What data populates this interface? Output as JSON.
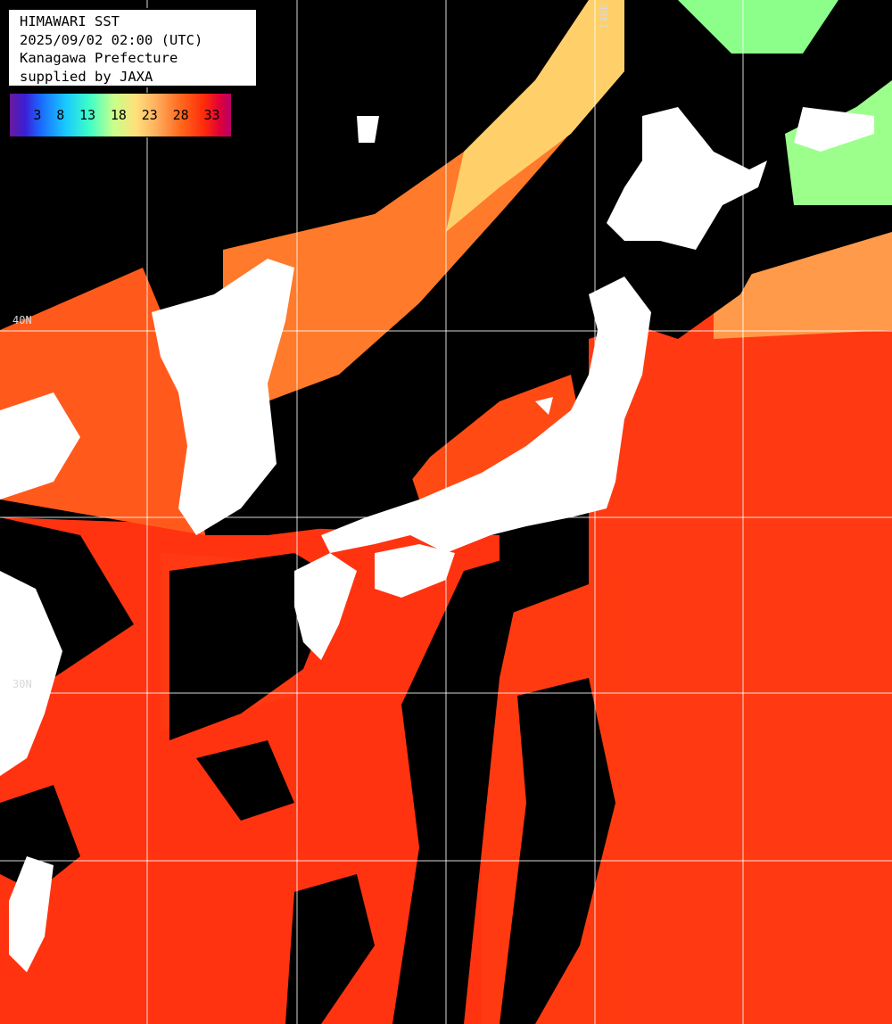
{
  "title_block": {
    "line1": "HIMAWARI SST",
    "line2": "2025/09/02 02:00 (UTC)",
    "line3": "Kanagawa Prefecture",
    "line4": "supplied by JAXA"
  },
  "legend": {
    "ticks": [
      "3",
      "8",
      "13",
      "18",
      "23",
      "28",
      "33"
    ],
    "colors": [
      "#6a1a9a",
      "#1a6aff",
      "#19c8ff",
      "#3dffc9",
      "#ffe07a",
      "#ff6a1e",
      "#e0003a"
    ]
  },
  "grid_labels": {
    "lat_40": "40N",
    "lat_30": "30N",
    "lon_140": "140E"
  },
  "colors": {
    "land": "#ffffff",
    "no_data": "#000000",
    "warm_sea": "#ff4a12",
    "hot_sea": "#ff2a0a",
    "mild_sea": "#ff8a3a",
    "cool_sea": "#ffd36a",
    "cold_sea": "#8cff8a",
    "grid": "#ffffff"
  }
}
